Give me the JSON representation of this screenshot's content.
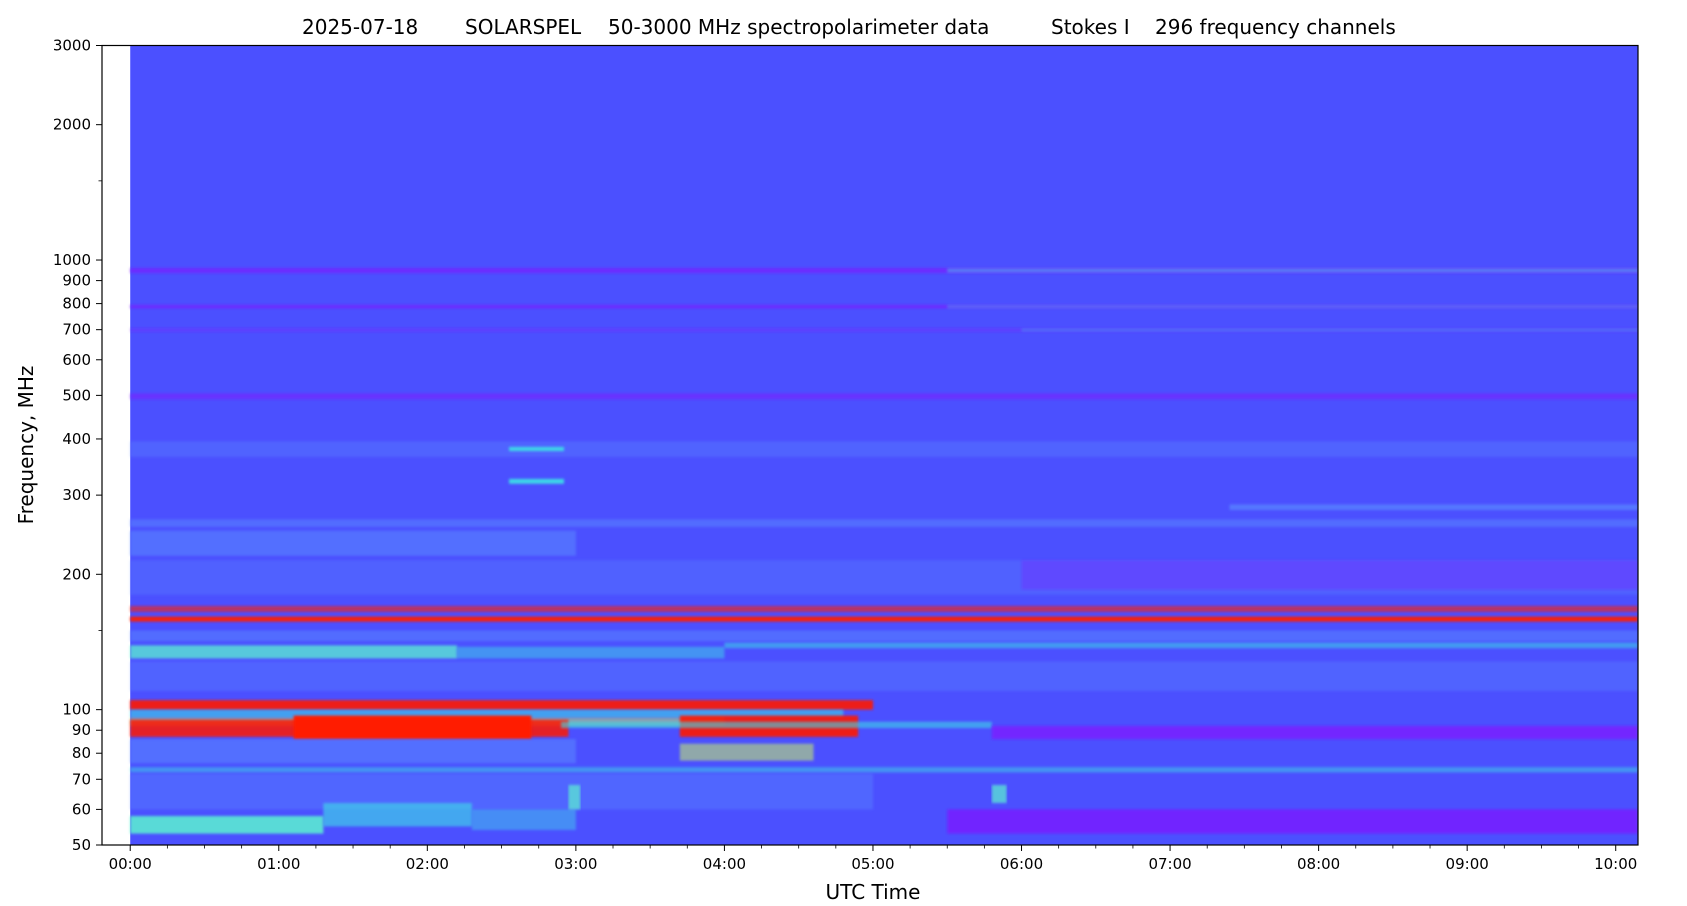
{
  "chart_data": {
    "type": "heatmap",
    "title_parts": {
      "date": "2025-07-18",
      "instrument": "SOLARSPEL",
      "description": "50-3000 MHz spectropolarimeter data",
      "stokes": "Stokes I",
      "channels": "296 frequency channels"
    },
    "xlabel": "UTC Time",
    "ylabel": "Frequency, MHz",
    "x_unit": "hours UTC",
    "y_unit": "MHz",
    "xlim": [
      -0.19,
      10.15
    ],
    "ylim": [
      50,
      3000
    ],
    "y_scale": "log",
    "data_start": 0.0,
    "data_end": 10.15,
    "x_ticks": [
      {
        "value": 0,
        "label": "00:00"
      },
      {
        "value": 1,
        "label": "01:00"
      },
      {
        "value": 2,
        "label": "02:00"
      },
      {
        "value": 3,
        "label": "03:00"
      },
      {
        "value": 4,
        "label": "04:00"
      },
      {
        "value": 5,
        "label": "05:00"
      },
      {
        "value": 6,
        "label": "06:00"
      },
      {
        "value": 7,
        "label": "07:00"
      },
      {
        "value": 8,
        "label": "08:00"
      },
      {
        "value": 9,
        "label": "09:00"
      },
      {
        "value": 10,
        "label": "10:00"
      }
    ],
    "x_minor_ticks": [
      0.25,
      0.5,
      0.75,
      1.25,
      1.5,
      1.75,
      2.25,
      2.5,
      2.75,
      3.25,
      3.5,
      3.75,
      4.25,
      4.5,
      4.75,
      5.25,
      5.5,
      5.75,
      6.25,
      6.5,
      6.75,
      7.25,
      7.5,
      7.75,
      8.25,
      8.5,
      8.75,
      9.25,
      9.5,
      9.75
    ],
    "y_ticks": [
      {
        "value": 50,
        "label": "50"
      },
      {
        "value": 60,
        "label": "60"
      },
      {
        "value": 70,
        "label": "70"
      },
      {
        "value": 80,
        "label": "80"
      },
      {
        "value": 90,
        "label": "90"
      },
      {
        "value": 100,
        "label": "100"
      },
      {
        "value": 200,
        "label": "200"
      },
      {
        "value": 300,
        "label": "300"
      },
      {
        "value": 400,
        "label": "400"
      },
      {
        "value": 500,
        "label": "500"
      },
      {
        "value": 600,
        "label": "600"
      },
      {
        "value": 700,
        "label": "700"
      },
      {
        "value": 800,
        "label": "800"
      },
      {
        "value": 900,
        "label": "900"
      },
      {
        "value": 1000,
        "label": "1000"
      },
      {
        "value": 2000,
        "label": "2000"
      },
      {
        "value": 3000,
        "label": "3000"
      }
    ],
    "y_minor_ticks": [
      150,
      1500
    ],
    "colors": {
      "background": "#4b50ff",
      "violet": "#7a1cff",
      "light_blue": "#5a88ff",
      "cyan": "#3dd6e8",
      "aqua": "#5cf2d0",
      "yellow_green": "#c8f064",
      "red": "#ff1a00"
    },
    "bands": [
      {
        "t0": 0.0,
        "t1": 10.15,
        "f0": 935,
        "f1": 960,
        "color": "violet",
        "opacity": 0.7
      },
      {
        "t0": 5.5,
        "t1": 10.15,
        "f0": 938,
        "f1": 958,
        "color": "cyan",
        "opacity": 0.45
      },
      {
        "t0": 0.0,
        "t1": 10.15,
        "f0": 780,
        "f1": 795,
        "color": "violet",
        "opacity": 0.7
      },
      {
        "t0": 5.5,
        "t1": 10.15,
        "f0": 780,
        "f1": 795,
        "color": "cyan",
        "opacity": 0.3
      },
      {
        "t0": 0.0,
        "t1": 10.15,
        "f0": 692,
        "f1": 706,
        "color": "violet",
        "opacity": 0.35
      },
      {
        "t0": 6.0,
        "t1": 10.15,
        "f0": 694,
        "f1": 704,
        "color": "cyan",
        "opacity": 0.3
      },
      {
        "t0": 0.0,
        "t1": 10.15,
        "f0": 490,
        "f1": 505,
        "color": "violet",
        "opacity": 0.6
      },
      {
        "t0": 0.0,
        "t1": 10.15,
        "f0": 365,
        "f1": 395,
        "color": "light_blue",
        "opacity": 0.35
      },
      {
        "t0": 2.55,
        "t1": 2.92,
        "f0": 376,
        "f1": 384,
        "color": "cyan",
        "opacity": 1
      },
      {
        "t0": 2.55,
        "t1": 2.92,
        "f0": 318,
        "f1": 326,
        "color": "cyan",
        "opacity": 1
      },
      {
        "t0": 7.4,
        "t1": 10.15,
        "f0": 278,
        "f1": 286,
        "color": "light_blue",
        "opacity": 0.7
      },
      {
        "t0": 0.0,
        "t1": 10.15,
        "f0": 255,
        "f1": 265,
        "color": "light_blue",
        "opacity": 0.5
      },
      {
        "t0": 0.0,
        "t1": 3.0,
        "f0": 220,
        "f1": 250,
        "color": "light_blue",
        "opacity": 0.55
      },
      {
        "t0": 0.0,
        "t1": 10.15,
        "f0": 180,
        "f1": 215,
        "color": "light_blue",
        "opacity": 0.3
      },
      {
        "t0": 6.0,
        "t1": 10.15,
        "f0": 185,
        "f1": 215,
        "color": "violet",
        "opacity": 0.35
      },
      {
        "t0": 0.0,
        "t1": 10.15,
        "f0": 165,
        "f1": 170,
        "color": "red",
        "opacity": 0.6
      },
      {
        "t0": 0.0,
        "t1": 10.15,
        "f0": 157,
        "f1": 161,
        "color": "red",
        "opacity": 0.95
      },
      {
        "t0": 0.0,
        "t1": 10.15,
        "f0": 142,
        "f1": 150,
        "color": "light_blue",
        "opacity": 0.5
      },
      {
        "t0": 0.0,
        "t1": 2.2,
        "f0": 130,
        "f1": 139,
        "color": "aqua",
        "opacity": 0.75
      },
      {
        "t0": 2.2,
        "t1": 4.0,
        "f0": 130,
        "f1": 138,
        "color": "cyan",
        "opacity": 0.5
      },
      {
        "t0": 4.0,
        "t1": 10.15,
        "f0": 137,
        "f1": 141,
        "color": "cyan",
        "opacity": 0.55
      },
      {
        "t0": 0.0,
        "t1": 10.15,
        "f0": 110,
        "f1": 128,
        "color": "light_blue",
        "opacity": 0.35
      },
      {
        "t0": 0.0,
        "t1": 5.0,
        "f0": 100,
        "f1": 105,
        "color": "red",
        "opacity": 0.9
      },
      {
        "t0": 0.0,
        "t1": 4.8,
        "f0": 96,
        "f1": 100,
        "color": "cyan",
        "opacity": 0.6
      },
      {
        "t0": 0.0,
        "t1": 4.0,
        "f0": 92,
        "f1": 96,
        "color": "yellow_green",
        "opacity": 0.5
      },
      {
        "t0": 0.0,
        "t1": 2.95,
        "f0": 87,
        "f1": 95,
        "color": "red",
        "opacity": 0.85
      },
      {
        "t0": 1.1,
        "t1": 2.7,
        "f0": 86,
        "f1": 97,
        "color": "red",
        "opacity": 1
      },
      {
        "t0": 3.7,
        "t1": 4.9,
        "f0": 87,
        "f1": 97,
        "color": "red",
        "opacity": 0.9
      },
      {
        "t0": 2.9,
        "t1": 5.8,
        "f0": 91,
        "f1": 94,
        "color": "cyan",
        "opacity": 0.6
      },
      {
        "t0": 5.8,
        "t1": 10.15,
        "f0": 86,
        "f1": 92,
        "color": "violet",
        "opacity": 0.85
      },
      {
        "t0": 0.0,
        "t1": 3.0,
        "f0": 76,
        "f1": 86,
        "color": "light_blue",
        "opacity": 0.55
      },
      {
        "t0": 3.7,
        "t1": 4.6,
        "f0": 77,
        "f1": 84,
        "color": "yellow_green",
        "opacity": 0.55
      },
      {
        "t0": 0.0,
        "t1": 10.15,
        "f0": 72.5,
        "f1": 74.5,
        "color": "cyan",
        "opacity": 0.5
      },
      {
        "t0": 0.0,
        "t1": 5.0,
        "f0": 60,
        "f1": 72,
        "color": "light_blue",
        "opacity": 0.4
      },
      {
        "t0": 0.0,
        "t1": 1.3,
        "f0": 53,
        "f1": 58,
        "color": "aqua",
        "opacity": 0.85
      },
      {
        "t0": 1.3,
        "t1": 2.3,
        "f0": 55,
        "f1": 62,
        "color": "cyan",
        "opacity": 0.65
      },
      {
        "t0": 2.3,
        "t1": 3.0,
        "f0": 54,
        "f1": 60,
        "color": "cyan",
        "opacity": 0.45
      },
      {
        "t0": 5.5,
        "t1": 10.15,
        "f0": 53,
        "f1": 60,
        "color": "violet",
        "opacity": 0.8
      },
      {
        "t0": 5.8,
        "t1": 5.9,
        "f0": 62,
        "f1": 68,
        "color": "aqua",
        "opacity": 0.7
      },
      {
        "t0": 2.95,
        "t1": 3.03,
        "f0": 60,
        "f1": 68,
        "color": "aqua",
        "opacity": 0.7
      }
    ]
  }
}
